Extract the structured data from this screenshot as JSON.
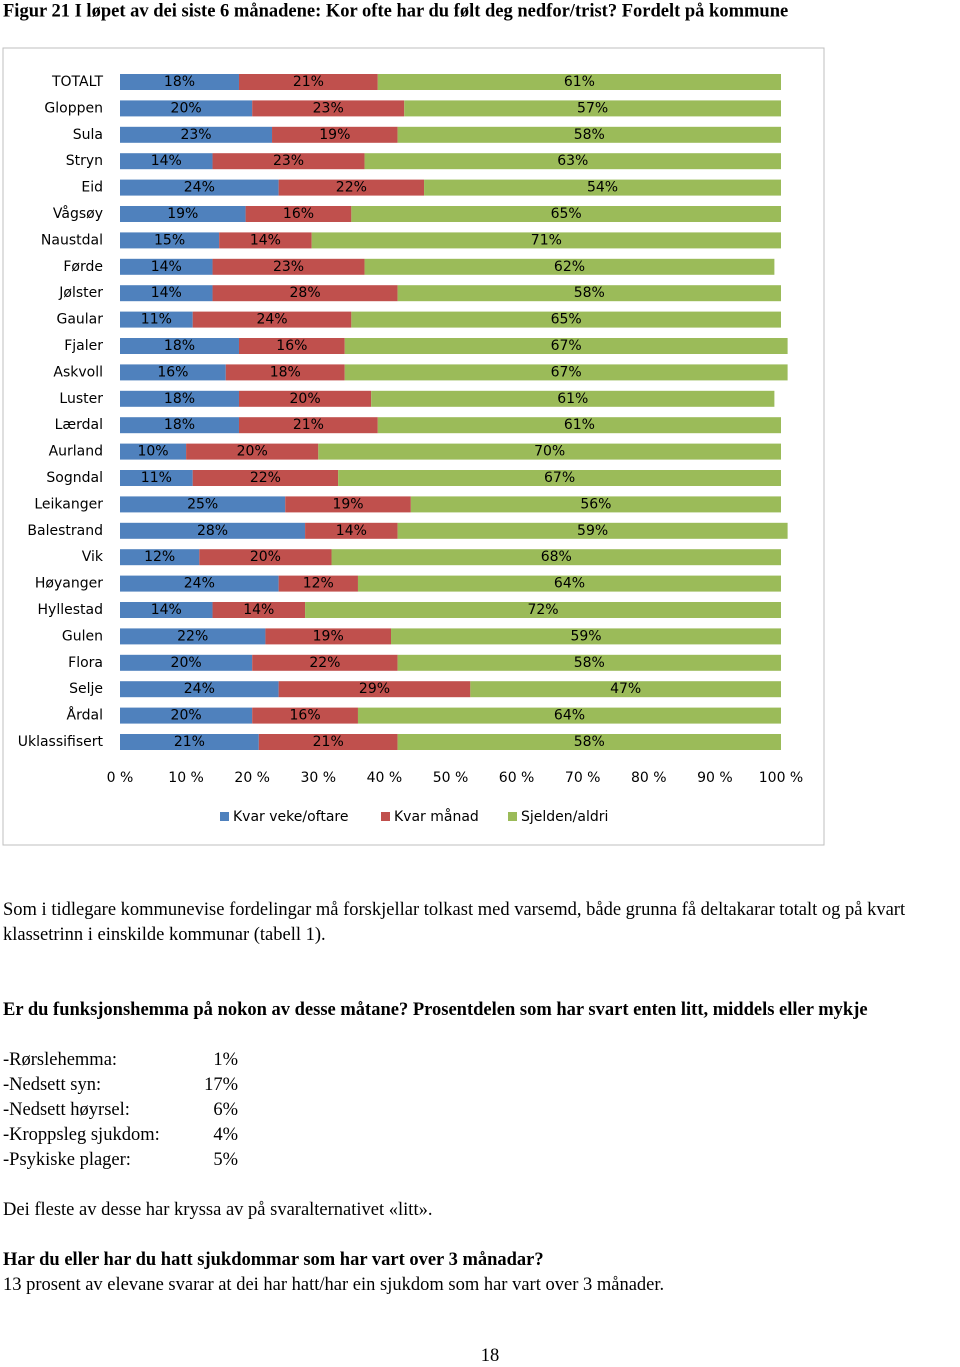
{
  "chart_data": {
    "type": "bar",
    "orientation": "horizontal",
    "stacked": true,
    "title": "Figur 21 I løpet av dei siste 6 månadene: Kor ofte har du følt deg nedfor/trist? Fordelt på kommune",
    "categories": [
      "TOTALT",
      "Gloppen",
      "Sula",
      "Stryn",
      "Eid",
      "Vågsøy",
      "Naustdal",
      "Førde",
      "Jølster",
      "Gaular",
      "Fjaler",
      "Askvoll",
      "Luster",
      "Lærdal",
      "Aurland",
      "Sogndal",
      "Leikanger",
      "Balestrand",
      "Vik",
      "Høyanger",
      "Hyllestad",
      "Gulen",
      "Flora",
      "Selje",
      "Årdal",
      "Uklassifisert"
    ],
    "series": [
      {
        "name": "Kvar veke/oftare",
        "color": "#4f81bd",
        "values": [
          18,
          20,
          23,
          14,
          24,
          19,
          15,
          14,
          14,
          11,
          18,
          16,
          18,
          18,
          10,
          11,
          25,
          28,
          12,
          24,
          14,
          22,
          20,
          24,
          20,
          21
        ],
        "value_labels": [
          "18%",
          "20%",
          "23%",
          "14%",
          "24%",
          "19%",
          "15%",
          "14%",
          "14%",
          "11%",
          "18%",
          "16%",
          "18%",
          "18%",
          "10%",
          "11%",
          "25%",
          "28%",
          "12%",
          "24%",
          "14%",
          "22%",
          "20%",
          "24%",
          "20%",
          "21%"
        ]
      },
      {
        "name": "Kvar månad",
        "color": "#c0504d",
        "values": [
          21,
          23,
          19,
          23,
          22,
          16,
          14,
          23,
          28,
          24,
          16,
          18,
          20,
          21,
          20,
          22,
          19,
          14,
          20,
          12,
          14,
          19,
          22,
          29,
          16,
          21
        ],
        "value_labels": [
          "21%",
          "23%",
          "19%",
          "23%",
          "22%",
          "16%",
          "14%",
          "23%",
          "28%",
          "24%",
          "16%",
          "18%",
          "20%",
          "21%",
          "20%",
          "22%",
          "19%",
          "14%",
          "20%",
          "12%",
          "14%",
          "19%",
          "22%",
          "29%",
          "16%",
          "21%"
        ]
      },
      {
        "name": "Sjelden/aldri",
        "color": "#9bbb59",
        "values": [
          61,
          57,
          58,
          63,
          54,
          65,
          71,
          62,
          58,
          65,
          67,
          67,
          61,
          61,
          70,
          67,
          56,
          59,
          68,
          64,
          72,
          59,
          58,
          47,
          64,
          58
        ],
        "value_labels": [
          "61%",
          "57%",
          "58%",
          "63%",
          "54%",
          "65%",
          "71%",
          "62%",
          "58%",
          "65%",
          "67%",
          "67%",
          "61%",
          "61%",
          "70%",
          "67%",
          "56%",
          "59%",
          "68%",
          "64%",
          "72%",
          "59%",
          "58%",
          "47%",
          "64%",
          "58%"
        ]
      }
    ],
    "xlim": [
      0,
      100
    ],
    "xticks": [
      {
        "value": 0,
        "label": "0 %"
      },
      {
        "value": 10,
        "label": "10 %"
      },
      {
        "value": 20,
        "label": "20 %"
      },
      {
        "value": 30,
        "label": "30 %"
      },
      {
        "value": 40,
        "label": "40 %"
      },
      {
        "value": 50,
        "label": "50 %"
      },
      {
        "value": 60,
        "label": "60 %"
      },
      {
        "value": 70,
        "label": "70 %"
      },
      {
        "value": 80,
        "label": "80 %"
      },
      {
        "value": 90,
        "label": "90 %"
      },
      {
        "value": 100,
        "label": "100 %"
      }
    ],
    "grid": false,
    "legend": "bottom"
  },
  "document": {
    "paragraph_1": "Som i tidlegare kommunevise fordelingar må forskjellar tolkast med varsemd, både grunna få deltakarar totalt og på kvart klassetrinn  i einskilde kommunar (tabell 1).",
    "heading_1": "Er du funksjonshemma på nokon av desse måtane? Prosentdelen som har svart enten litt, middels eller mykje",
    "list": [
      {
        "label": "-Rørslehemma:",
        "value": "1%"
      },
      {
        "label": "-Nedsett syn:",
        "value": "17%"
      },
      {
        "label": "-Nedsett høyrsel:",
        "value": "6%"
      },
      {
        "label": "-Kroppsleg sjukdom:",
        "value": "4%"
      },
      {
        "label": "-Psykiske plager:",
        "value": "5%"
      }
    ],
    "paragraph_2": "Dei fleste av desse har kryssa av på svaralternativet «litt».",
    "heading_2": "Har du eller har du hatt sjukdommar som har vart over 3 månadar?",
    "paragraph_3": "13 prosent av elevane svarar at dei har hatt/har ein sjukdom som har vart over 3 månader.",
    "page_number": "18"
  }
}
